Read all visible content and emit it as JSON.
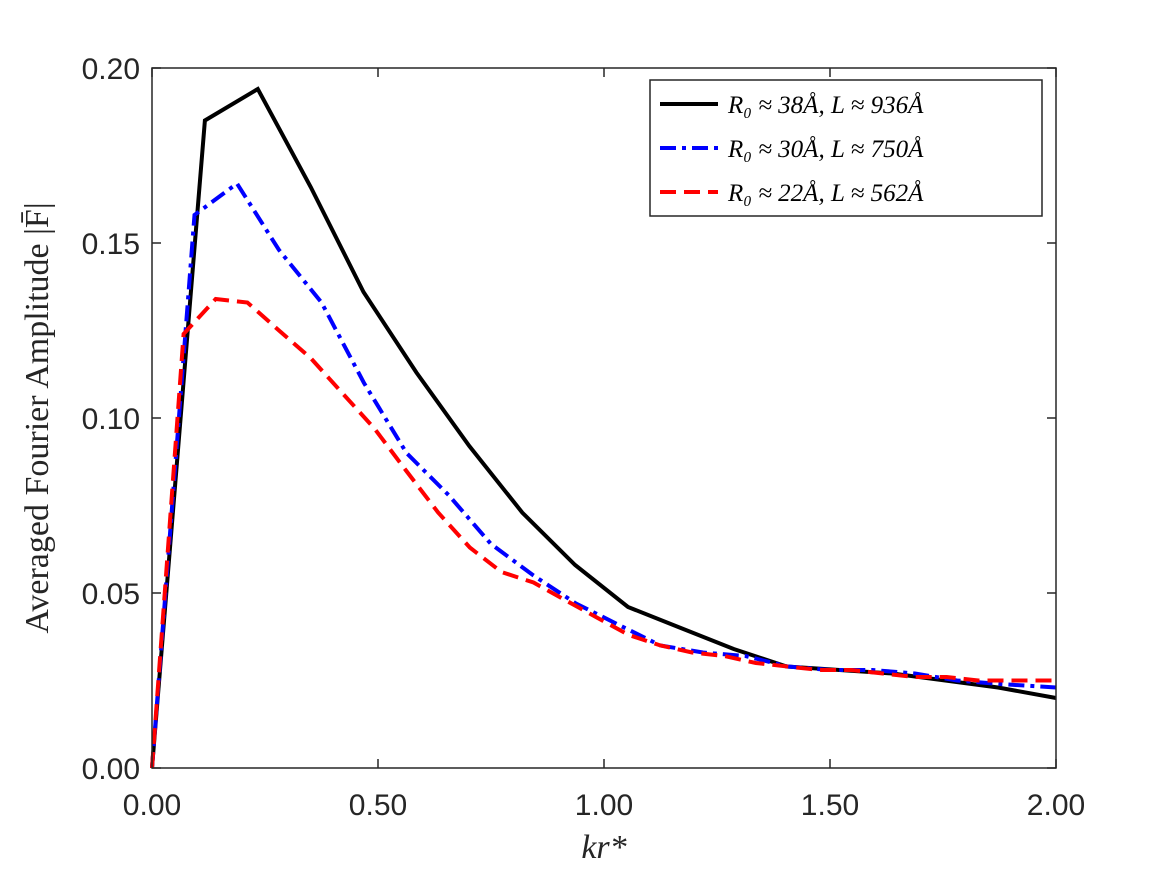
{
  "chart_data": {
    "type": "line",
    "title": "",
    "xlabel": "kr*",
    "ylabel": "Averaged Fourier Amplitude |F̄|",
    "xlim": [
      0,
      2
    ],
    "ylim": [
      0,
      0.2
    ],
    "x_ticks": [
      "0.00",
      "0.50",
      "1.00",
      "1.50",
      "2.00"
    ],
    "y_ticks": [
      "0.00",
      "0.05",
      "0.10",
      "0.15",
      "0.20"
    ],
    "x_tick_values": [
      0,
      0.5,
      1.0,
      1.5,
      2.0
    ],
    "y_tick_values": [
      0,
      0.05,
      0.1,
      0.15,
      0.2
    ],
    "legend_position": "top-right",
    "series": [
      {
        "name": "R₀ ≈ 38Å, L ≈ 936Å",
        "color": "#000000",
        "dash": "solid",
        "x": [
          0.0,
          0.117,
          0.234,
          0.351,
          0.468,
          0.585,
          0.702,
          0.819,
          0.936,
          1.053,
          1.17,
          1.287,
          1.404,
          1.521,
          1.638,
          1.755,
          1.872,
          2.0
        ],
        "y": [
          0.0,
          0.185,
          0.194,
          0.166,
          0.136,
          0.113,
          0.092,
          0.073,
          0.058,
          0.046,
          0.04,
          0.034,
          0.029,
          0.028,
          0.027,
          0.025,
          0.023,
          0.02
        ]
      },
      {
        "name": "R₀ ≈ 30Å, L ≈ 750Å",
        "color": "#0000ff",
        "dash": "dashdot",
        "x": [
          0.0,
          0.094,
          0.188,
          0.281,
          0.375,
          0.469,
          0.563,
          0.656,
          0.75,
          0.844,
          0.938,
          1.031,
          1.125,
          1.219,
          1.313,
          1.406,
          1.5,
          1.594,
          1.688,
          1.781,
          1.875,
          2.0
        ],
        "y": [
          0.0,
          0.158,
          0.167,
          0.148,
          0.133,
          0.11,
          0.09,
          0.078,
          0.064,
          0.055,
          0.047,
          0.041,
          0.035,
          0.033,
          0.032,
          0.029,
          0.028,
          0.028,
          0.027,
          0.025,
          0.024,
          0.023
        ]
      },
      {
        "name": "R₀ ≈ 22Å, L ≈ 562Å",
        "color": "#ff0000",
        "dash": "dashed",
        "x": [
          0.0,
          0.07,
          0.141,
          0.211,
          0.281,
          0.352,
          0.422,
          0.492,
          0.562,
          0.633,
          0.703,
          0.773,
          0.844,
          0.914,
          0.984,
          1.055,
          1.125,
          1.195,
          1.266,
          1.336,
          1.406,
          1.477,
          1.547,
          1.617,
          1.688,
          1.758,
          1.828,
          1.898,
          2.0
        ],
        "y": [
          0.0,
          0.124,
          0.134,
          0.133,
          0.125,
          0.117,
          0.107,
          0.097,
          0.085,
          0.073,
          0.063,
          0.056,
          0.053,
          0.048,
          0.043,
          0.038,
          0.035,
          0.033,
          0.032,
          0.03,
          0.029,
          0.028,
          0.028,
          0.027,
          0.026,
          0.026,
          0.025,
          0.025,
          0.025
        ]
      }
    ]
  }
}
